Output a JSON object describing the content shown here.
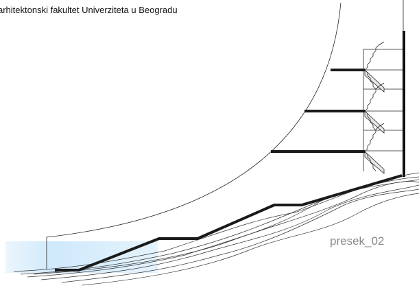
{
  "header": {
    "title": "arhitektonski fakultet Univerziteta u Beogradu"
  },
  "drawing": {
    "label": "presek_02"
  }
}
